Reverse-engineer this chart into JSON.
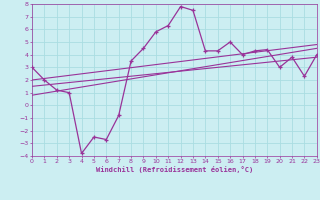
{
  "xlabel": "Windchill (Refroidissement éolien,°C)",
  "bg_color": "#cceef2",
  "grid_color": "#aadde2",
  "line_color": "#993399",
  "xlim": [
    0,
    23
  ],
  "ylim": [
    -4,
    8
  ],
  "xticks": [
    0,
    1,
    2,
    3,
    4,
    5,
    6,
    7,
    8,
    9,
    10,
    11,
    12,
    13,
    14,
    15,
    16,
    17,
    18,
    19,
    20,
    21,
    22,
    23
  ],
  "yticks": [
    -4,
    -3,
    -2,
    -1,
    0,
    1,
    2,
    3,
    4,
    5,
    6,
    7,
    8
  ],
  "series1_x": [
    0,
    1,
    2,
    3,
    4,
    5,
    6,
    7,
    8,
    9,
    10,
    11,
    12,
    13,
    14,
    15,
    16,
    17,
    18,
    19,
    20,
    21,
    22,
    23
  ],
  "series1_y": [
    3.0,
    2.0,
    1.2,
    1.0,
    -3.8,
    -2.5,
    -2.7,
    -0.8,
    3.5,
    4.5,
    5.8,
    6.3,
    7.8,
    7.5,
    4.3,
    4.3,
    5.0,
    4.0,
    4.3,
    4.4,
    3.0,
    3.8,
    2.3,
    4.0
  ],
  "line1_x": [
    0,
    23
  ],
  "line1_y": [
    2.0,
    4.8
  ],
  "line2_x": [
    0,
    23
  ],
  "line2_y": [
    1.5,
    3.8
  ],
  "line3_x": [
    0,
    23
  ],
  "line3_y": [
    0.8,
    4.5
  ]
}
